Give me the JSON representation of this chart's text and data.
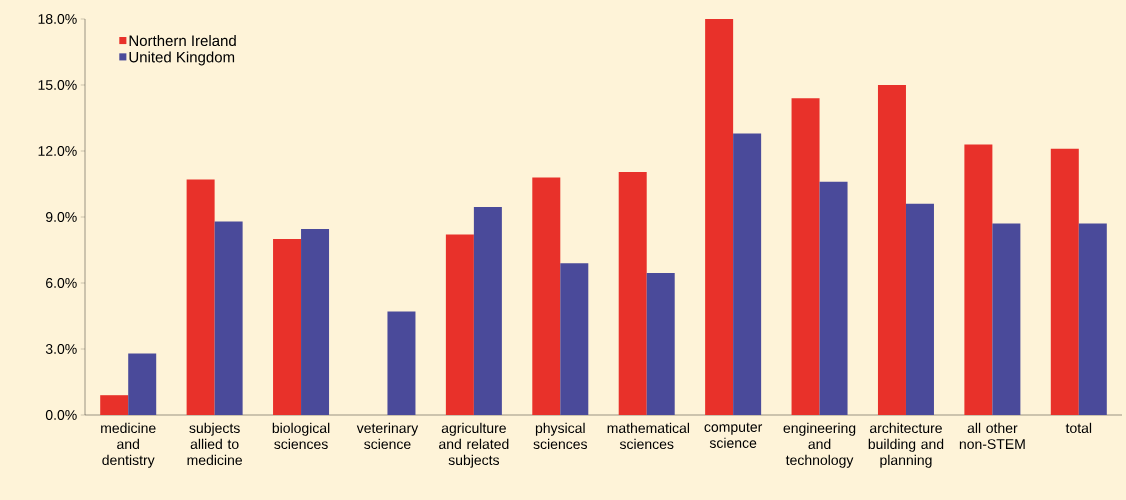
{
  "chart_data": {
    "type": "bar",
    "categories": [
      "medicine and dentistry",
      "subjects allied to medicine",
      "biological sciences",
      "veterinary science",
      "agriculture and related subjects",
      "physical sciences",
      "mathematical sciences",
      "computer science",
      "engineering and technology",
      "architecture building and planning",
      "all other non-STEM",
      "total"
    ],
    "series": [
      {
        "name": "Northern Ireland",
        "color": "#e8312a",
        "values": [
          0.9,
          10.7,
          8.0,
          null,
          8.2,
          10.8,
          11.05,
          18.0,
          14.4,
          15.0,
          12.3,
          12.1
        ]
      },
      {
        "name": "United Kingdom",
        "color": "#4a4a9a",
        "values": [
          2.8,
          8.8,
          8.45,
          4.7,
          9.45,
          6.9,
          6.45,
          12.8,
          10.6,
          9.6,
          8.7,
          8.7
        ]
      }
    ],
    "ylim": [
      0,
      18
    ],
    "yticks": [
      {
        "value": 0,
        "label": "0.0%"
      },
      {
        "value": 3,
        "label": "3.0%"
      },
      {
        "value": 6,
        "label": "6.0%"
      },
      {
        "value": 9,
        "label": "9.0%"
      },
      {
        "value": 12,
        "label": "12.0%"
      },
      {
        "value": 15,
        "label": "15.0%"
      },
      {
        "value": 18,
        "label": "18.0%"
      }
    ],
    "grid": false,
    "legend": "top left"
  }
}
